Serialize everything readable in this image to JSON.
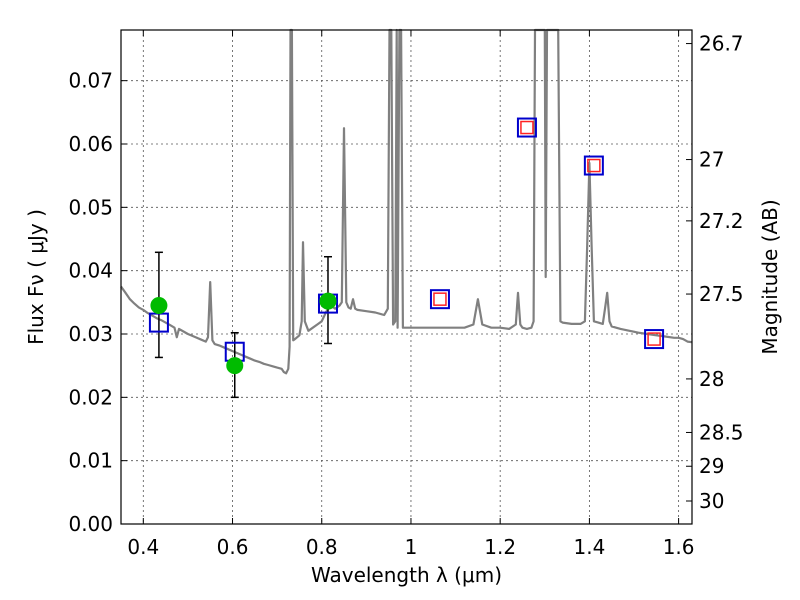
{
  "chart_data": {
    "type": "line",
    "xlabel": "Wavelength  λ (μm)",
    "ylabel_left": "Flux  Fν  ( μJy )",
    "ylabel_right": "Magnitude (AB)",
    "xlim": [
      0.35,
      1.63
    ],
    "ylim": [
      0.0,
      0.078
    ],
    "x_ticks": [
      0.4,
      0.6,
      0.8,
      1.0,
      1.2,
      1.4,
      1.6
    ],
    "x_tick_labels": [
      "0.4",
      "0.6",
      "0.8",
      "1",
      "1.2",
      "1.4",
      "1.6"
    ],
    "y_ticks": [
      0.0,
      0.01,
      0.02,
      0.03,
      0.04,
      0.05,
      0.06,
      0.07
    ],
    "y_tick_labels": [
      "0.00",
      "0.01",
      "0.02",
      "0.03",
      "0.04",
      "0.05",
      "0.06",
      "0.07"
    ],
    "right_axis_ticks": [
      {
        "label": "26.7",
        "mag": 26.7
      },
      {
        "label": "27",
        "mag": 27.0
      },
      {
        "label": "27.2",
        "mag": 27.2
      },
      {
        "label": "27.5",
        "mag": 27.5
      },
      {
        "label": "28",
        "mag": 28.0
      },
      {
        "label": "28.5",
        "mag": 28.5
      },
      {
        "label": "29",
        "mag": 29.0
      },
      {
        "label": "30",
        "mag": 30.0
      }
    ],
    "grid": true,
    "colors": {
      "spectrum": "#808080",
      "observed": "#00bb00",
      "model_phot": "#0000cc",
      "model_phot_inner": "#ff2222",
      "errorbar": "#000000"
    },
    "series": [
      {
        "name": "model spectrum",
        "kind": "line",
        "points": [
          [
            0.35,
            0.0375
          ],
          [
            0.36,
            0.0365
          ],
          [
            0.37,
            0.0355
          ],
          [
            0.38,
            0.0348
          ],
          [
            0.39,
            0.0342
          ],
          [
            0.4,
            0.0338
          ],
          [
            0.41,
            0.0333
          ],
          [
            0.42,
            0.0329
          ],
          [
            0.43,
            0.0325
          ],
          [
            0.44,
            0.0322
          ],
          [
            0.45,
            0.0318
          ],
          [
            0.46,
            0.0314
          ],
          [
            0.47,
            0.031
          ],
          [
            0.475,
            0.0295
          ],
          [
            0.48,
            0.0308
          ],
          [
            0.49,
            0.0304
          ],
          [
            0.5,
            0.03
          ],
          [
            0.51,
            0.0297
          ],
          [
            0.52,
            0.0294
          ],
          [
            0.53,
            0.0291
          ],
          [
            0.54,
            0.0288
          ],
          [
            0.545,
            0.0295
          ],
          [
            0.55,
            0.0382
          ],
          [
            0.555,
            0.029
          ],
          [
            0.56,
            0.0284
          ],
          [
            0.57,
            0.0282
          ],
          [
            0.58,
            0.0279
          ],
          [
            0.59,
            0.0276
          ],
          [
            0.6,
            0.0273
          ],
          [
            0.61,
            0.027
          ],
          [
            0.62,
            0.0267
          ],
          [
            0.63,
            0.0264
          ],
          [
            0.64,
            0.0261
          ],
          [
            0.65,
            0.0258
          ],
          [
            0.66,
            0.0256
          ],
          [
            0.67,
            0.0253
          ],
          [
            0.68,
            0.0251
          ],
          [
            0.69,
            0.0249
          ],
          [
            0.7,
            0.0247
          ],
          [
            0.71,
            0.0245
          ],
          [
            0.715,
            0.024
          ],
          [
            0.72,
            0.0238
          ],
          [
            0.725,
            0.0245
          ],
          [
            0.728,
            0.028
          ],
          [
            0.73,
            0.078
          ],
          [
            0.733,
            0.078
          ],
          [
            0.736,
            0.029
          ],
          [
            0.74,
            0.0292
          ],
          [
            0.75,
            0.0298
          ],
          [
            0.755,
            0.032
          ],
          [
            0.758,
            0.0445
          ],
          [
            0.762,
            0.032
          ],
          [
            0.77,
            0.0305
          ],
          [
            0.78,
            0.031
          ],
          [
            0.79,
            0.0315
          ],
          [
            0.8,
            0.032
          ],
          [
            0.81,
            0.0335
          ],
          [
            0.82,
            0.0345
          ],
          [
            0.83,
            0.034
          ],
          [
            0.84,
            0.0345
          ],
          [
            0.845,
            0.035
          ],
          [
            0.85,
            0.0625
          ],
          [
            0.855,
            0.035
          ],
          [
            0.86,
            0.0342
          ],
          [
            0.865,
            0.034
          ],
          [
            0.87,
            0.0355
          ],
          [
            0.875,
            0.034
          ],
          [
            0.88,
            0.0338
          ],
          [
            0.9,
            0.0336
          ],
          [
            0.92,
            0.0334
          ],
          [
            0.94,
            0.033
          ],
          [
            0.948,
            0.034
          ],
          [
            0.952,
            0.078
          ],
          [
            0.956,
            0.078
          ],
          [
            0.96,
            0.0315
          ],
          [
            0.965,
            0.032
          ],
          [
            0.968,
            0.078
          ],
          [
            0.97,
            0.031
          ],
          [
            0.974,
            0.078
          ],
          [
            0.978,
            0.078
          ],
          [
            0.982,
            0.031
          ],
          [
            0.99,
            0.031
          ],
          [
            1.0,
            0.031
          ],
          [
            1.02,
            0.031
          ],
          [
            1.05,
            0.031
          ],
          [
            1.08,
            0.031
          ],
          [
            1.1,
            0.031
          ],
          [
            1.12,
            0.031
          ],
          [
            1.14,
            0.0315
          ],
          [
            1.15,
            0.0355
          ],
          [
            1.16,
            0.0315
          ],
          [
            1.18,
            0.031
          ],
          [
            1.2,
            0.031
          ],
          [
            1.22,
            0.0308
          ],
          [
            1.235,
            0.0315
          ],
          [
            1.24,
            0.0365
          ],
          [
            1.245,
            0.0315
          ],
          [
            1.25,
            0.031
          ],
          [
            1.26,
            0.0308
          ],
          [
            1.27,
            0.031
          ],
          [
            1.275,
            0.032
          ],
          [
            1.278,
            0.078
          ],
          [
            1.285,
            0.078
          ],
          [
            1.29,
            0.078
          ],
          [
            1.3,
            0.078
          ],
          [
            1.302,
            0.039
          ],
          [
            1.305,
            0.078
          ],
          [
            1.32,
            0.078
          ],
          [
            1.33,
            0.078
          ],
          [
            1.335,
            0.032
          ],
          [
            1.34,
            0.0318
          ],
          [
            1.36,
            0.0316
          ],
          [
            1.38,
            0.0316
          ],
          [
            1.39,
            0.032
          ],
          [
            1.395,
            0.044
          ],
          [
            1.4,
            0.057
          ],
          [
            1.405,
            0.044
          ],
          [
            1.41,
            0.032
          ],
          [
            1.42,
            0.0318
          ],
          [
            1.43,
            0.0316
          ],
          [
            1.435,
            0.034
          ],
          [
            1.44,
            0.0365
          ],
          [
            1.445,
            0.032
          ],
          [
            1.45,
            0.0312
          ],
          [
            1.47,
            0.0308
          ],
          [
            1.49,
            0.0305
          ],
          [
            1.51,
            0.0302
          ],
          [
            1.53,
            0.03
          ],
          [
            1.55,
            0.0298
          ],
          [
            1.57,
            0.0296
          ],
          [
            1.59,
            0.0294
          ],
          [
            1.6,
            0.0294
          ],
          [
            1.61,
            0.0292
          ],
          [
            1.62,
            0.0288
          ],
          [
            1.63,
            0.0287
          ]
        ]
      },
      {
        "name": "model photometry",
        "kind": "open-square",
        "points": [
          [
            0.435,
            0.0318
          ],
          [
            0.605,
            0.0272
          ],
          [
            0.814,
            0.0348
          ],
          [
            1.065,
            0.0355
          ],
          [
            1.26,
            0.0626
          ],
          [
            1.41,
            0.0566
          ],
          [
            1.545,
            0.0292
          ]
        ]
      },
      {
        "name": "model photometry inner",
        "kind": "small-square",
        "points": [
          [
            1.065,
            0.0355
          ],
          [
            1.26,
            0.0626
          ],
          [
            1.41,
            0.0566
          ],
          [
            1.545,
            0.0292
          ]
        ]
      },
      {
        "name": "observed photometry",
        "kind": "circle-errorbar",
        "points": [
          {
            "x": 0.435,
            "y": 0.0345,
            "yerr_low": 0.0082,
            "yerr_high": 0.0084
          },
          {
            "x": 0.605,
            "y": 0.025,
            "yerr_low": 0.005,
            "yerr_high": 0.0052
          },
          {
            "x": 0.814,
            "y": 0.0352,
            "yerr_low": 0.0067,
            "yerr_high": 0.007
          }
        ]
      }
    ]
  }
}
